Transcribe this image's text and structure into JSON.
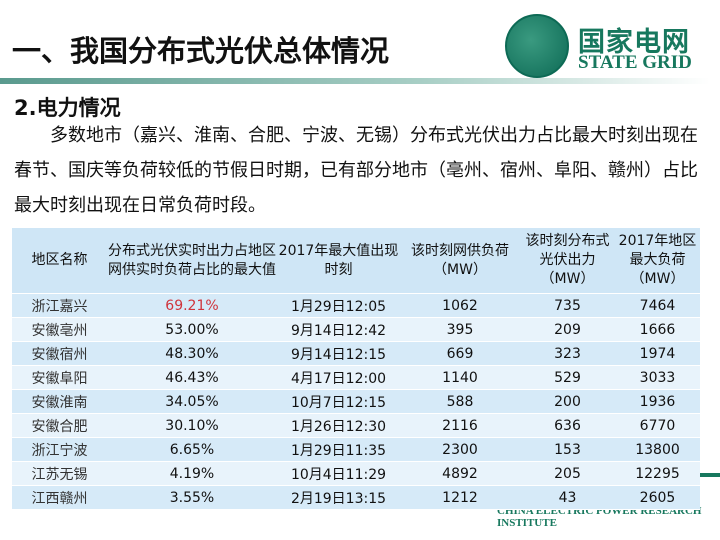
{
  "slide": {
    "title": "一、我国分布式光伏总体情况",
    "subtitle": "2.电力情况",
    "paragraph": "多数地市（嘉兴、淮南、合肥、宁波、无锡）分布式光伏出力占比最大时刻出现在春节、国庆等负荷较低的节假日时期，已有部分地市（亳州、宿州、阜阳、赣州）占比最大时刻出现在日常负荷时段。"
  },
  "logo": {
    "cn": "国家电网",
    "en": "STATE GRID",
    "institute": "CHINA ELECTRIC POWER RESEARCH INSTITUTE"
  },
  "colors": {
    "highlight": "#d0343c",
    "brand": "#17785e",
    "header_bg": "#cfe6f6"
  },
  "table": {
    "headers": [
      "地区名称",
      "分布式光伏实时出力占地区网供实时负荷占比的最大值",
      "2017年最大值出现时刻",
      "该时刻网供负荷（MW）",
      "该时刻分布式光伏出力（MW）",
      "2017年地区最大负荷（MW）"
    ],
    "rows": [
      [
        "浙江嘉兴",
        "69.21%",
        "1月29日12:05",
        "1062",
        "735",
        "7464"
      ],
      [
        "安徽亳州",
        "53.00%",
        "9月14日12:42",
        "395",
        "209",
        "1666"
      ],
      [
        "安徽宿州",
        "48.30%",
        "9月14日12:15",
        "669",
        "323",
        "1974"
      ],
      [
        "安徽阜阳",
        "46.43%",
        "4月17日12:00",
        "1140",
        "529",
        "3033"
      ],
      [
        "安徽淮南",
        "34.05%",
        "10月7日12:15",
        "588",
        "200",
        "1936"
      ],
      [
        "安徽合肥",
        "30.10%",
        "1月26日12:30",
        "2116",
        "636",
        "6770"
      ],
      [
        "浙江宁波",
        "6.65%",
        "1月29日11:35",
        "2300",
        "153",
        "13800"
      ],
      [
        "江苏无锡",
        "4.19%",
        "10月4日11:29",
        "4892",
        "205",
        "12295"
      ],
      [
        "江西赣州",
        "3.55%",
        "2月19日13:15",
        "1212",
        "43",
        "2605"
      ]
    ]
  }
}
